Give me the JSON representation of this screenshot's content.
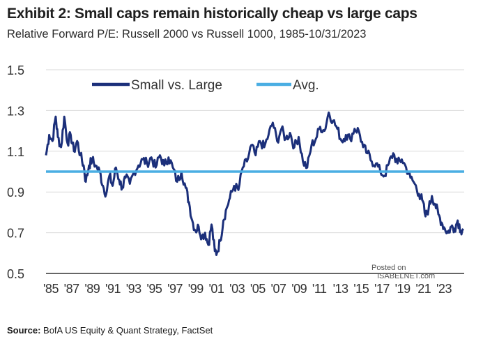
{
  "header": {
    "title": "Exhibit 2: Small caps remain historically cheap vs large caps",
    "subtitle": "Relative Forward P/E: Russell 2000 vs Russell 1000, 1985-10/31/2023"
  },
  "footer": {
    "source_label": "Source:",
    "source_text": "BofA US Equity & Quant Strategy, FactSet"
  },
  "watermark": {
    "line1": "Posted on",
    "line2": "ISABELNET.com"
  },
  "chart_data": {
    "type": "line",
    "ylim": [
      0.5,
      1.5
    ],
    "yticks": [
      "1.5",
      "1.3",
      "1.1",
      "0.9",
      "0.7",
      "0.5"
    ],
    "xlim": [
      1985,
      2023.9
    ],
    "xticks": [
      "'85",
      "'87",
      "'89",
      "'91",
      "'93",
      "'95",
      "'97",
      "'99",
      "'01",
      "'03",
      "'05",
      "'07",
      "'09",
      "'11",
      "'13",
      "'15",
      "'17",
      "'19",
      "'21",
      "'23"
    ],
    "grid": "horizontal",
    "legend_position": "top-left",
    "series": [
      {
        "name": "Small vs. Large",
        "color": "#1b2f7a",
        "points": [
          [
            1985.0,
            1.08
          ],
          [
            1985.3,
            1.18
          ],
          [
            1985.6,
            1.15
          ],
          [
            1985.9,
            1.27
          ],
          [
            1986.1,
            1.17
          ],
          [
            1986.4,
            1.12
          ],
          [
            1986.7,
            1.27
          ],
          [
            1987.0,
            1.14
          ],
          [
            1987.3,
            1.18
          ],
          [
            1987.6,
            1.1
          ],
          [
            1987.9,
            1.15
          ],
          [
            1988.2,
            1.08
          ],
          [
            1988.5,
            1.03
          ],
          [
            1988.7,
            0.95
          ],
          [
            1989.0,
            1.03
          ],
          [
            1989.3,
            1.06
          ],
          [
            1989.6,
            1.03
          ],
          [
            1990.0,
            1.0
          ],
          [
            1990.3,
            0.93
          ],
          [
            1990.6,
            0.89
          ],
          [
            1990.9,
            0.98
          ],
          [
            1991.2,
            0.93
          ],
          [
            1991.5,
            1.02
          ],
          [
            1991.8,
            0.96
          ],
          [
            1992.1,
            0.92
          ],
          [
            1992.4,
            0.97
          ],
          [
            1992.8,
            0.94
          ],
          [
            1993.2,
            1.0
          ],
          [
            1993.6,
            1.03
          ],
          [
            1994.0,
            1.06
          ],
          [
            1994.4,
            1.04
          ],
          [
            1994.8,
            1.07
          ],
          [
            1995.2,
            1.02
          ],
          [
            1995.6,
            1.08
          ],
          [
            1996.0,
            1.03
          ],
          [
            1996.4,
            1.07
          ],
          [
            1996.8,
            1.02
          ],
          [
            1997.2,
            0.95
          ],
          [
            1997.6,
            1.0
          ],
          [
            1998.0,
            0.92
          ],
          [
            1998.3,
            0.85
          ],
          [
            1998.6,
            0.76
          ],
          [
            1998.9,
            0.71
          ],
          [
            1999.2,
            0.73
          ],
          [
            1999.5,
            0.68
          ],
          [
            1999.8,
            0.7
          ],
          [
            2000.1,
            0.64
          ],
          [
            2000.4,
            0.74
          ],
          [
            2000.7,
            0.61
          ],
          [
            2000.9,
            0.6
          ],
          [
            2001.2,
            0.66
          ],
          [
            2001.5,
            0.76
          ],
          [
            2001.8,
            0.82
          ],
          [
            2002.1,
            0.87
          ],
          [
            2002.5,
            0.93
          ],
          [
            2002.9,
            0.91
          ],
          [
            2003.3,
            1.02
          ],
          [
            2003.7,
            1.05
          ],
          [
            2004.1,
            1.13
          ],
          [
            2004.5,
            1.08
          ],
          [
            2004.9,
            1.15
          ],
          [
            2005.3,
            1.12
          ],
          [
            2005.7,
            1.18
          ],
          [
            2006.1,
            1.24
          ],
          [
            2006.5,
            1.15
          ],
          [
            2006.9,
            1.21
          ],
          [
            2007.3,
            1.16
          ],
          [
            2007.7,
            1.19
          ],
          [
            2008.1,
            1.12
          ],
          [
            2008.5,
            1.17
          ],
          [
            2008.9,
            1.05
          ],
          [
            2009.3,
            1.02
          ],
          [
            2009.7,
            1.13
          ],
          [
            2010.1,
            1.16
          ],
          [
            2010.5,
            1.22
          ],
          [
            2010.9,
            1.2
          ],
          [
            2011.3,
            1.29
          ],
          [
            2011.7,
            1.25
          ],
          [
            2012.1,
            1.21
          ],
          [
            2012.5,
            1.15
          ],
          [
            2012.9,
            1.18
          ],
          [
            2013.3,
            1.16
          ],
          [
            2013.7,
            1.21
          ],
          [
            2014.1,
            1.2
          ],
          [
            2014.5,
            1.12
          ],
          [
            2014.9,
            1.09
          ],
          [
            2015.3,
            1.05
          ],
          [
            2015.7,
            1.04
          ],
          [
            2016.1,
            1.0
          ],
          [
            2016.5,
            0.98
          ],
          [
            2016.9,
            1.04
          ],
          [
            2017.3,
            1.09
          ],
          [
            2017.7,
            1.04
          ],
          [
            2018.1,
            1.06
          ],
          [
            2018.5,
            1.02
          ],
          [
            2018.9,
            0.97
          ],
          [
            2019.3,
            0.94
          ],
          [
            2019.7,
            0.89
          ],
          [
            2020.0,
            0.86
          ],
          [
            2020.3,
            0.78
          ],
          [
            2020.6,
            0.82
          ],
          [
            2020.9,
            0.88
          ],
          [
            2021.2,
            0.84
          ],
          [
            2021.5,
            0.79
          ],
          [
            2021.8,
            0.75
          ],
          [
            2022.1,
            0.72
          ],
          [
            2022.4,
            0.7
          ],
          [
            2022.7,
            0.73
          ],
          [
            2023.0,
            0.72
          ],
          [
            2023.3,
            0.76
          ],
          [
            2023.6,
            0.71
          ],
          [
            2023.8,
            0.72
          ]
        ]
      },
      {
        "name": "Avg.",
        "color": "#4aaee3",
        "value": 1.0
      }
    ]
  }
}
